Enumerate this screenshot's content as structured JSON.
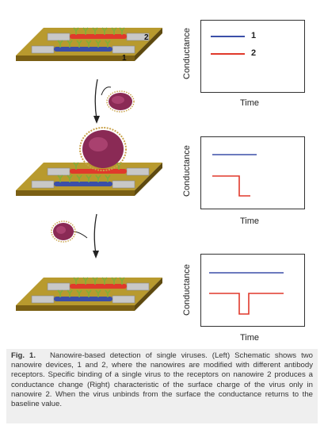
{
  "figure": {
    "graph1": {
      "ylabel": "Conductance",
      "xlabel": "Time"
    },
    "graph2": {
      "ylabel": "Conductance",
      "xlabel": "Time"
    },
    "graph3": {
      "ylabel": "Conductance",
      "xlabel": "Time"
    },
    "legend": {
      "item1": "1",
      "item2": "2"
    },
    "nanowire_labels": {
      "wire1": "1",
      "wire2": "2"
    },
    "colors": {
      "wire1": "#3b4fa8",
      "wire2": "#e0392b",
      "chip": "#b89a2e"
    }
  },
  "caption": {
    "label": "Fig. 1.",
    "text": "Nanowire-based detection of single viruses. (Left) Schematic shows two nanowire devices, 1 and 2, where the nanowires are modified with different antibody receptors. Specific binding of a single virus to the receptors on nanowire 2 produces a conductance change (Right) characteristic of the surface charge of the virus only in nanowire 2. When the virus unbinds from the surface the conductance returns to the baseline value."
  }
}
